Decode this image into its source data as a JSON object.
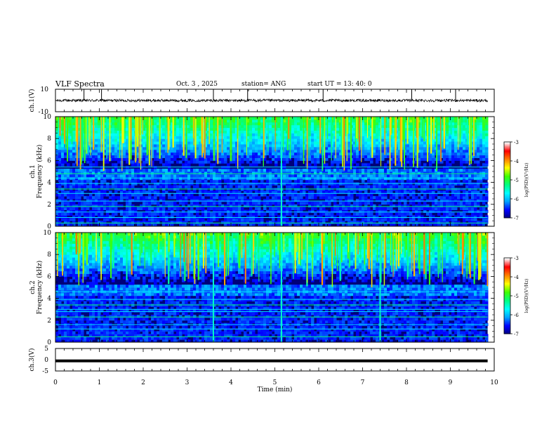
{
  "header": {
    "title": "VLF Spectra",
    "date": "Oct. 3  , 2025",
    "station": "station= ANG",
    "start_ut": "start  UT  =   13: 40: 0"
  },
  "chart_data": [
    {
      "type": "line",
      "name": "ch1-waveform",
      "ylabel": "ch.1(V)",
      "ylim": [
        -10,
        10
      ],
      "yticks": [
        "10",
        "-10"
      ],
      "baseline": 0,
      "noise_amplitude": 1.2,
      "spikes_at_min": [
        0.65,
        1.05,
        3.6,
        4.38,
        6.1,
        8.12,
        9.12
      ]
    },
    {
      "type": "heatmap",
      "name": "ch1-spectrogram",
      "ylabel": "ch.1\nFrequency (kHz)",
      "ylim": [
        0,
        10
      ],
      "yticks": [
        "0",
        "2",
        "4",
        "6",
        "8",
        "10"
      ],
      "xlim": [
        0,
        9.85
      ],
      "colorbar": {
        "label": "log(PSD)(V²/Hz)",
        "range": [
          -7,
          -3
        ],
        "ticks": [
          "-3",
          "-4",
          "-5",
          "-6",
          "-7"
        ]
      },
      "bright_lines_khz": [
        0.3,
        0.8,
        1.3,
        1.8,
        2.3,
        3.0,
        3.4,
        3.9,
        4.4,
        4.8,
        5.4
      ],
      "strong_sferics_min": [
        5.15
      ]
    },
    {
      "type": "heatmap",
      "name": "ch2-spectrogram",
      "ylabel": "ch.2\nFrequency (kHz)",
      "ylim": [
        0,
        10
      ],
      "yticks": [
        "0",
        "2",
        "4",
        "6",
        "8",
        "10"
      ],
      "xlim": [
        0,
        9.85
      ],
      "colorbar": {
        "label": "log(PSD)(V²/Hz)",
        "range": [
          -7,
          -3
        ],
        "ticks": [
          "-3",
          "-4",
          "-5",
          "-6",
          "-7"
        ]
      },
      "bright_lines_khz": [
        0.5,
        1.2,
        1.6,
        2.3,
        2.8,
        3.0,
        3.4,
        3.9,
        4.6
      ],
      "strong_sferics_min": [
        3.6,
        5.15,
        7.4
      ]
    },
    {
      "type": "line",
      "name": "ch3-waveform",
      "ylabel": "ch.3(V)",
      "ylim": [
        -5,
        5
      ],
      "yticks": [
        "5",
        "0",
        "-5"
      ],
      "constant_value": -0.5
    }
  ],
  "xaxis": {
    "label": "Time (min)",
    "range": [
      0,
      10
    ],
    "ticks": [
      "0",
      "1",
      "2",
      "3",
      "4",
      "5",
      "6",
      "7",
      "8",
      "9",
      "10"
    ]
  },
  "colors": {
    "axis": "#000000",
    "background": "#ffffff",
    "colormap": [
      "#00007a",
      "#0000ff",
      "#00a0ff",
      "#00ffff",
      "#00ff80",
      "#40ff00",
      "#ffff00",
      "#ff8000",
      "#ff0000",
      "#ffffff"
    ]
  }
}
